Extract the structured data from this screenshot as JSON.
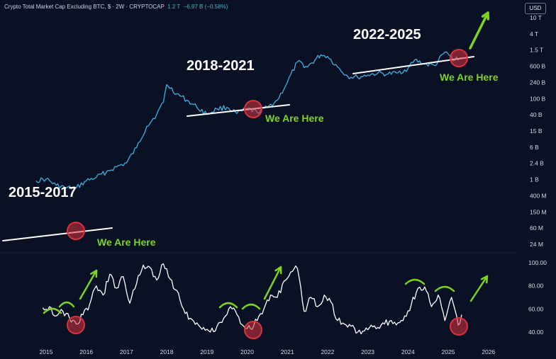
{
  "header": {
    "title": "Crypto Total Market Cap Excluding BTC, $ · 2W · CRYPTOCAP",
    "value": "1.2 T",
    "change": "−6.97 B (−0.58%)",
    "currency": "USD"
  },
  "colors": {
    "background": "#0b1124",
    "price_line": "#42aede",
    "oscillator_line": "#ffffff",
    "trendline": "#ffffff",
    "circle": "#d8323f",
    "annotation_green": "#7ed321",
    "label_text": "#ffffff"
  },
  "chart_data": [
    {
      "type": "line",
      "scale": "log",
      "series": [
        {
          "x": [
            "2014-10",
            "2015-01",
            "2015-04",
            "2015-07",
            "2015-10",
            "2016-01",
            "2016-04",
            "2016-07",
            "2016-10",
            "2017-01",
            "2017-04",
            "2017-07",
            "2017-10",
            "2017-12",
            "2018-01",
            "2018-04",
            "2018-07",
            "2018-10",
            "2019-01",
            "2019-04",
            "2019-07",
            "2019-10",
            "2020-01",
            "2020-04",
            "2020-07",
            "2020-10",
            "2021-01",
            "2021-04",
            "2021-07",
            "2021-11",
            "2022-01",
            "2022-04",
            "2022-07",
            "2022-10",
            "2023-01",
            "2023-04",
            "2023-07",
            "2023-10",
            "2024-01",
            "2024-03",
            "2024-06",
            "2024-09",
            "2024-12",
            "2025-03",
            "2025-05"
          ],
          "values": [
            0.9,
            1.0,
            0.7,
            0.6,
            0.6,
            0.9,
            1.1,
            1.5,
            2.0,
            2.5,
            6,
            20,
            40,
            80,
            220,
            130,
            90,
            60,
            40,
            55,
            60,
            42,
            55,
            45,
            60,
            90,
            250,
            800,
            600,
            1200,
            1100,
            600,
            350,
            330,
            380,
            420,
            400,
            430,
            550,
            900,
            700,
            650,
            1400,
            900,
            1000
          ]
        }
      ],
      "y_ticks": [
        "10 T",
        "4 T",
        "1.5 T",
        "600 B",
        "240 B",
        "100 B",
        "40 B",
        "15 B",
        "6 B",
        "2.4 B",
        "1 B",
        "400 M",
        "150 M",
        "60 M",
        "24 M"
      ],
      "annotations": {
        "period_labels": [
          "2015-2017",
          "2018-2021",
          "2022-2025"
        ],
        "we_are_here": [
          "We Are Here",
          "We Are Here",
          "We Are Here"
        ]
      }
    },
    {
      "type": "line",
      "series": [
        {
          "x": [
            "2014-12",
            "2015-02",
            "2015-04",
            "2015-06",
            "2015-08",
            "2015-10",
            "2015-12",
            "2016-02",
            "2016-04",
            "2016-06",
            "2016-08",
            "2016-10",
            "2016-12",
            "2017-02",
            "2017-04",
            "2017-06",
            "2017-08",
            "2017-10",
            "2017-12",
            "2018-02",
            "2018-04",
            "2018-06",
            "2018-08",
            "2018-10",
            "2018-12",
            "2019-02",
            "2019-04",
            "2019-06",
            "2019-08",
            "2019-10",
            "2019-12",
            "2020-02",
            "2020-04",
            "2020-06",
            "2020-08",
            "2020-10",
            "2020-12",
            "2021-02",
            "2021-04",
            "2021-06",
            "2021-08",
            "2021-10",
            "2021-12",
            "2022-02",
            "2022-04",
            "2022-06",
            "2022-08",
            "2022-10",
            "2022-12",
            "2023-02",
            "2023-04",
            "2023-06",
            "2023-08",
            "2023-10",
            "2023-12",
            "2024-02",
            "2024-04",
            "2024-06",
            "2024-08",
            "2024-10",
            "2024-12",
            "2025-02",
            "2025-04",
            "2025-05"
          ],
          "values": [
            61,
            62,
            54,
            58,
            52,
            47,
            55,
            64,
            80,
            72,
            90,
            78,
            88,
            65,
            82,
            98,
            96,
            85,
            99,
            86,
            76,
            60,
            52,
            48,
            44,
            40,
            45,
            52,
            62,
            55,
            45,
            43,
            50,
            60,
            72,
            70,
            84,
            92,
            95,
            58,
            70,
            62,
            72,
            66,
            50,
            47,
            45,
            40,
            41,
            46,
            44,
            47,
            50,
            48,
            54,
            64,
            78,
            79,
            62,
            72,
            50,
            70,
            46,
            55
          ]
        }
      ],
      "y_ticks": [
        "100.00",
        "80.00",
        "60.00",
        "40.00"
      ]
    }
  ],
  "x_axis": {
    "ticks": [
      "2015",
      "2016",
      "2017",
      "2018",
      "2019",
      "2020",
      "2021",
      "2022",
      "2023",
      "2024",
      "2025",
      "2026"
    ]
  }
}
